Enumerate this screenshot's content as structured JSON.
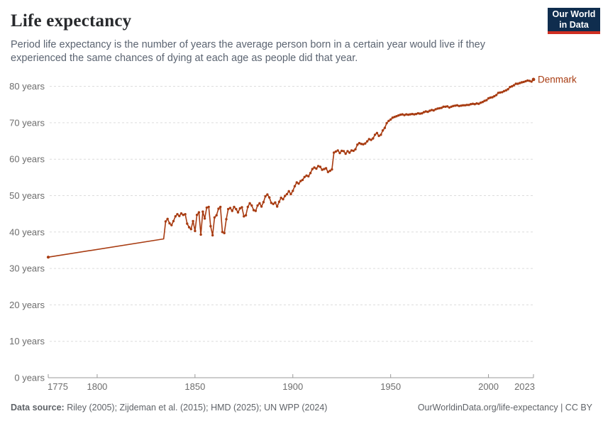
{
  "header": {
    "title": "Life expectancy",
    "subtitle": "Period life expectancy is the number of years the average person born in a certain year would live if they experienced the same chances of dying at each age as people did that year.",
    "logo": {
      "line1": "Our World",
      "line2": "in Data",
      "bg_color": "#0f2d4e",
      "accent_color": "#cf2e21"
    }
  },
  "footer": {
    "datasource_label": "Data source:",
    "datasource_text": " Riley (2005); Zijdeman et al. (2015); HMD (2025); UN WPP (2024)",
    "credit": "OurWorldinData.org/life-expectancy | CC BY"
  },
  "chart_data": {
    "type": "line",
    "title": "Life expectancy",
    "unit": "years",
    "grid": "horizontal-dashed",
    "xlim": [
      1775,
      2023
    ],
    "ylim": [
      0,
      84
    ],
    "x_ticks": [
      1775,
      1800,
      1850,
      1900,
      1950,
      2000,
      2023
    ],
    "y_ticks": [
      0,
      10,
      20,
      30,
      40,
      50,
      60,
      70,
      80
    ],
    "y_tick_suffix": " years",
    "axis_color": "#9a9a9a",
    "gridline_color": "#dcdcdc",
    "tick_label_color": "#6d6d6d",
    "series": [
      {
        "name": "Denmark",
        "label": "Denmark",
        "color": "#a83c12",
        "marker_start_year": 1835,
        "points": [
          [
            1775,
            33.1
          ],
          [
            1834,
            38.1
          ],
          [
            1835,
            42.9
          ],
          [
            1836,
            43.6
          ],
          [
            1837,
            42.4
          ],
          [
            1838,
            41.9
          ],
          [
            1839,
            43.0
          ],
          [
            1840,
            44.3
          ],
          [
            1841,
            44.9
          ],
          [
            1842,
            44.4
          ],
          [
            1843,
            45.1
          ],
          [
            1844,
            44.7
          ],
          [
            1845,
            44.9
          ],
          [
            1846,
            42.3
          ],
          [
            1847,
            41.3
          ],
          [
            1848,
            40.8
          ],
          [
            1849,
            43.0
          ],
          [
            1850,
            40.3
          ],
          [
            1851,
            44.7
          ],
          [
            1852,
            45.4
          ],
          [
            1853,
            39.3
          ],
          [
            1854,
            45.6
          ],
          [
            1855,
            43.7
          ],
          [
            1856,
            46.7
          ],
          [
            1857,
            46.9
          ],
          [
            1858,
            41.6
          ],
          [
            1859,
            39.1
          ],
          [
            1860,
            44.0
          ],
          [
            1861,
            44.6
          ],
          [
            1862,
            46.4
          ],
          [
            1863,
            46.9
          ],
          [
            1864,
            40.0
          ],
          [
            1865,
            39.7
          ],
          [
            1866,
            43.5
          ],
          [
            1867,
            46.3
          ],
          [
            1868,
            46.6
          ],
          [
            1869,
            45.8
          ],
          [
            1870,
            46.9
          ],
          [
            1871,
            46.3
          ],
          [
            1872,
            45.4
          ],
          [
            1873,
            46.5
          ],
          [
            1874,
            46.8
          ],
          [
            1875,
            44.3
          ],
          [
            1876,
            44.6
          ],
          [
            1877,
            46.9
          ],
          [
            1878,
            47.9
          ],
          [
            1879,
            47.3
          ],
          [
            1880,
            46.0
          ],
          [
            1881,
            45.8
          ],
          [
            1882,
            47.3
          ],
          [
            1883,
            47.9
          ],
          [
            1884,
            47.0
          ],
          [
            1885,
            48.2
          ],
          [
            1886,
            49.8
          ],
          [
            1887,
            50.3
          ],
          [
            1888,
            49.5
          ],
          [
            1889,
            48.0
          ],
          [
            1890,
            47.7
          ],
          [
            1891,
            48.1
          ],
          [
            1892,
            47.0
          ],
          [
            1893,
            48.3
          ],
          [
            1894,
            49.4
          ],
          [
            1895,
            49.0
          ],
          [
            1896,
            49.9
          ],
          [
            1897,
            50.4
          ],
          [
            1898,
            51.2
          ],
          [
            1899,
            50.4
          ],
          [
            1900,
            51.3
          ],
          [
            1901,
            52.6
          ],
          [
            1902,
            53.6
          ],
          [
            1903,
            53.3
          ],
          [
            1904,
            54.0
          ],
          [
            1905,
            54.3
          ],
          [
            1906,
            55.1
          ],
          [
            1907,
            55.5
          ],
          [
            1908,
            55.3
          ],
          [
            1909,
            56.2
          ],
          [
            1910,
            57.3
          ],
          [
            1911,
            57.7
          ],
          [
            1912,
            57.4
          ],
          [
            1913,
            58.1
          ],
          [
            1914,
            57.9
          ],
          [
            1915,
            57.1
          ],
          [
            1916,
            57.3
          ],
          [
            1917,
            57.5
          ],
          [
            1918,
            56.5
          ],
          [
            1919,
            56.8
          ],
          [
            1920,
            57.2
          ],
          [
            1921,
            61.8
          ],
          [
            1922,
            62.1
          ],
          [
            1923,
            62.4
          ],
          [
            1924,
            61.7
          ],
          [
            1925,
            62.3
          ],
          [
            1926,
            62.2
          ],
          [
            1927,
            61.5
          ],
          [
            1928,
            62.2
          ],
          [
            1929,
            61.8
          ],
          [
            1930,
            62.4
          ],
          [
            1931,
            62.3
          ],
          [
            1932,
            62.7
          ],
          [
            1933,
            64.0
          ],
          [
            1934,
            64.4
          ],
          [
            1935,
            64.2
          ],
          [
            1936,
            64.1
          ],
          [
            1937,
            64.3
          ],
          [
            1938,
            64.9
          ],
          [
            1939,
            65.5
          ],
          [
            1940,
            65.3
          ],
          [
            1941,
            65.7
          ],
          [
            1942,
            66.7
          ],
          [
            1943,
            67.2
          ],
          [
            1944,
            66.4
          ],
          [
            1945,
            66.7
          ],
          [
            1946,
            67.9
          ],
          [
            1947,
            68.6
          ],
          [
            1948,
            69.9
          ],
          [
            1949,
            70.5
          ],
          [
            1950,
            70.9
          ],
          [
            1951,
            71.4
          ],
          [
            1952,
            71.6
          ],
          [
            1953,
            71.8
          ],
          [
            1954,
            72.0
          ],
          [
            1955,
            72.2
          ],
          [
            1956,
            72.3
          ],
          [
            1957,
            72.1
          ],
          [
            1958,
            72.3
          ],
          [
            1959,
            72.2
          ],
          [
            1960,
            72.3
          ],
          [
            1961,
            72.4
          ],
          [
            1962,
            72.3
          ],
          [
            1963,
            72.4
          ],
          [
            1964,
            72.6
          ],
          [
            1965,
            72.5
          ],
          [
            1966,
            72.6
          ],
          [
            1967,
            72.9
          ],
          [
            1968,
            73.1
          ],
          [
            1969,
            73.0
          ],
          [
            1970,
            73.3
          ],
          [
            1971,
            73.5
          ],
          [
            1972,
            73.4
          ],
          [
            1973,
            73.7
          ],
          [
            1974,
            73.9
          ],
          [
            1975,
            74.0
          ],
          [
            1976,
            74.1
          ],
          [
            1977,
            74.4
          ],
          [
            1978,
            74.4
          ],
          [
            1979,
            74.5
          ],
          [
            1980,
            74.2
          ],
          [
            1981,
            74.4
          ],
          [
            1982,
            74.6
          ],
          [
            1983,
            74.7
          ],
          [
            1984,
            74.8
          ],
          [
            1985,
            74.6
          ],
          [
            1986,
            74.7
          ],
          [
            1987,
            74.8
          ],
          [
            1988,
            74.8
          ],
          [
            1989,
            74.9
          ],
          [
            1990,
            74.9
          ],
          [
            1991,
            75.1
          ],
          [
            1992,
            75.2
          ],
          [
            1993,
            75.1
          ],
          [
            1994,
            75.3
          ],
          [
            1995,
            75.2
          ],
          [
            1996,
            75.5
          ],
          [
            1997,
            75.7
          ],
          [
            1998,
            76.0
          ],
          [
            1999,
            76.2
          ],
          [
            2000,
            76.7
          ],
          [
            2001,
            76.9
          ],
          [
            2002,
            77.0
          ],
          [
            2003,
            77.3
          ],
          [
            2004,
            77.6
          ],
          [
            2005,
            78.2
          ],
          [
            2006,
            78.3
          ],
          [
            2007,
            78.4
          ],
          [
            2008,
            78.7
          ],
          [
            2009,
            78.9
          ],
          [
            2010,
            79.2
          ],
          [
            2011,
            79.8
          ],
          [
            2012,
            80.0
          ],
          [
            2013,
            80.3
          ],
          [
            2014,
            80.7
          ],
          [
            2015,
            80.7
          ],
          [
            2016,
            80.9
          ],
          [
            2017,
            81.1
          ],
          [
            2018,
            81.2
          ],
          [
            2019,
            81.4
          ],
          [
            2020,
            81.6
          ],
          [
            2021,
            81.5
          ],
          [
            2022,
            81.3
          ],
          [
            2023,
            81.9
          ]
        ]
      }
    ]
  }
}
